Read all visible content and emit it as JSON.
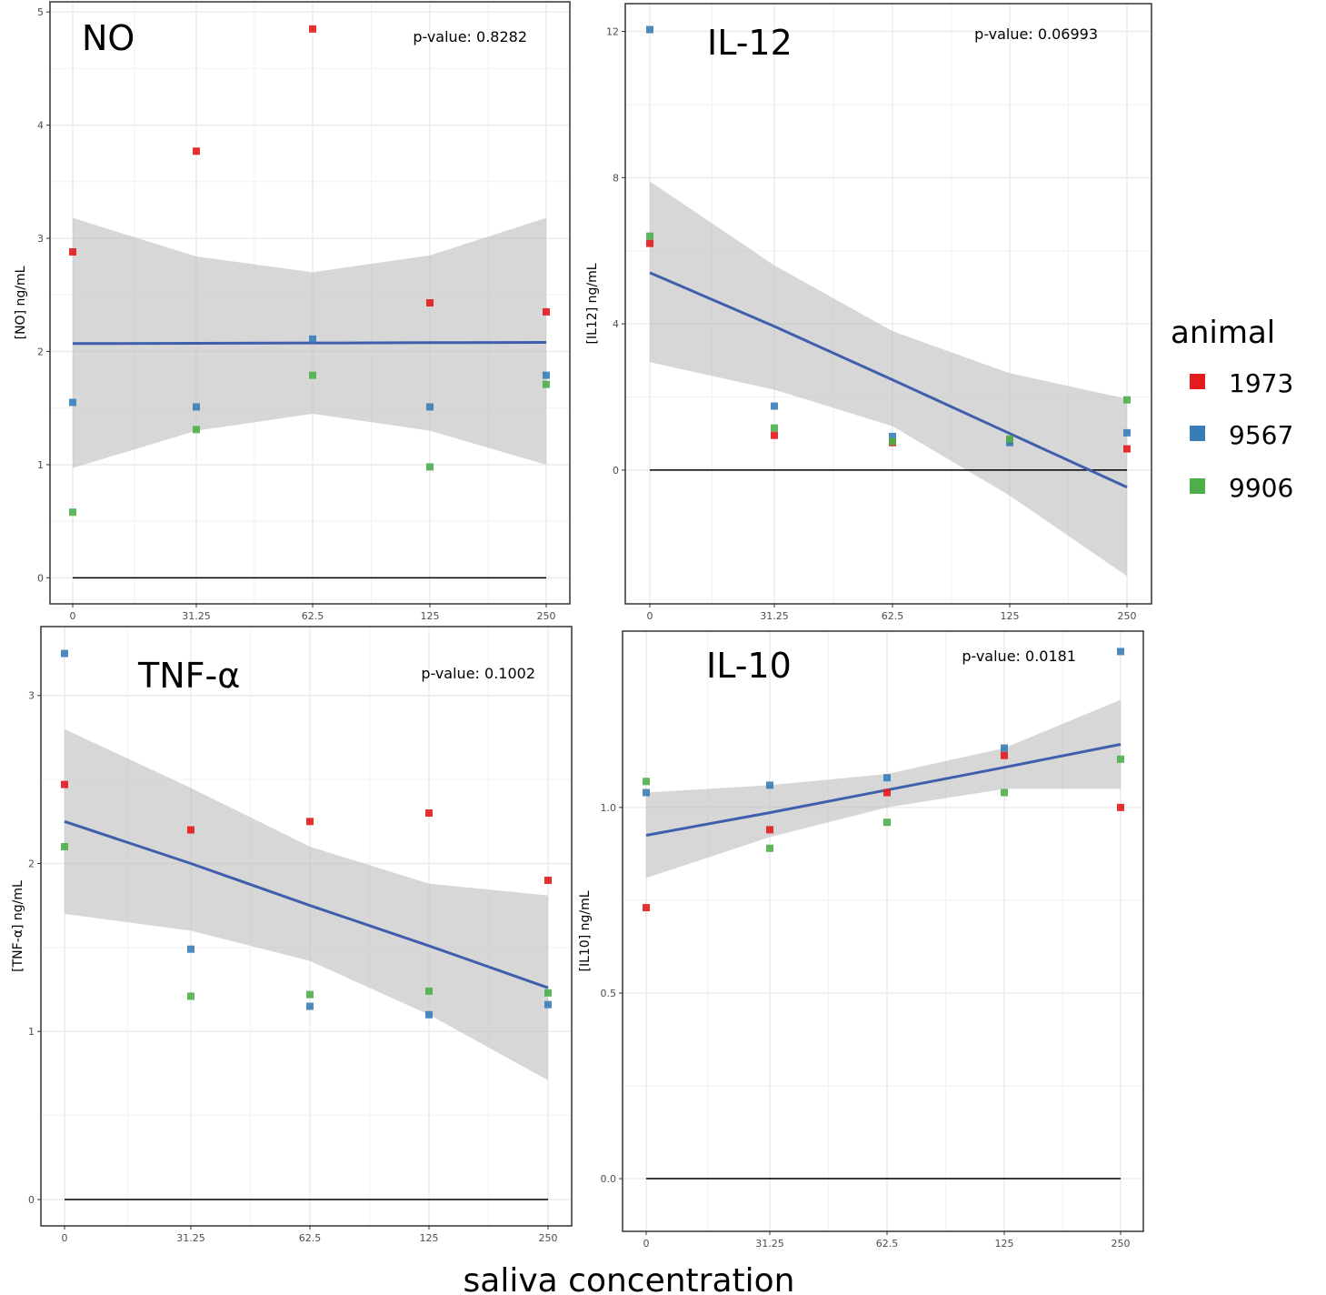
{
  "colors": {
    "1973": "#e41a1c",
    "9567": "#377eb8",
    "9906": "#4daf4a",
    "fit": "#3f5fad",
    "ci": "#bdbdbd"
  },
  "legend": {
    "title": "animal",
    "entries": [
      "1973",
      "9567",
      "9906"
    ]
  },
  "xlabel": "saliva concentration",
  "chart_data": [
    {
      "type": "scatter",
      "title": "NO",
      "pvalue": "p-value: 0.8282",
      "ylabel": "[NO] ng/mL",
      "categories": [
        "0",
        "31.25",
        "62.5",
        "125",
        "250"
      ],
      "yticks": [
        "0",
        "1",
        "2",
        "3",
        "4",
        "5"
      ],
      "ytick_values": [
        0,
        1,
        2,
        3,
        4,
        5
      ],
      "ylim": [
        -0.23,
        5.09
      ],
      "series": [
        {
          "name": "1973",
          "values": [
            2.88,
            3.77,
            4.85,
            2.43,
            2.35
          ]
        },
        {
          "name": "9567",
          "values": [
            1.55,
            1.51,
            2.11,
            1.51,
            1.79
          ]
        },
        {
          "name": "9906",
          "values": [
            0.58,
            1.31,
            1.79,
            0.98,
            1.71
          ]
        }
      ],
      "fit": [
        2.07,
        2.072,
        2.075,
        2.078,
        2.08
      ],
      "ci_upper": [
        3.18,
        2.84,
        2.7,
        2.85,
        3.18
      ],
      "ci_lower": [
        0.97,
        1.3,
        1.45,
        1.3,
        1.0
      ]
    },
    {
      "type": "scatter",
      "title": "IL-12",
      "pvalue": "p-value: 0.06993",
      "ylabel": "[IL12] ng/mL",
      "categories": [
        "0",
        "31.25",
        "62.5",
        "125",
        "250"
      ],
      "yticks": [
        "0",
        "4",
        "8",
        "12"
      ],
      "ytick_values": [
        0,
        4,
        8,
        12
      ],
      "ylim": [
        -3.66,
        12.76
      ],
      "series": [
        {
          "name": "1973",
          "values": [
            6.2,
            0.95,
            0.75,
            0.8,
            0.58
          ]
        },
        {
          "name": "9567",
          "values": [
            12.05,
            1.75,
            0.92,
            0.75,
            1.02
          ]
        },
        {
          "name": "9906",
          "values": [
            6.4,
            1.15,
            0.78,
            0.85,
            1.92
          ]
        }
      ],
      "fit": [
        5.4,
        3.93,
        2.47,
        1.0,
        -0.47
      ],
      "ci_upper": [
        7.9,
        5.6,
        3.8,
        2.65,
        1.95
      ],
      "ci_lower": [
        2.95,
        2.2,
        1.2,
        -0.7,
        -2.9
      ]
    },
    {
      "type": "scatter",
      "title": "TNF-α",
      "pvalue": "p-value: 0.1002",
      "ylabel": "[TNF-α] ng/mL",
      "categories": [
        "0",
        "31.25",
        "62.5",
        "125",
        "250"
      ],
      "yticks": [
        "0",
        "1",
        "2",
        "3"
      ],
      "ytick_values": [
        0,
        1,
        2,
        3
      ],
      "ylim": [
        -0.157,
        3.41
      ],
      "series": [
        {
          "name": "1973",
          "values": [
            2.47,
            2.2,
            2.25,
            2.3,
            1.9
          ]
        },
        {
          "name": "9567",
          "values": [
            3.25,
            1.49,
            1.15,
            1.1,
            1.16
          ]
        },
        {
          "name": "9906",
          "values": [
            2.1,
            1.21,
            1.22,
            1.24,
            1.23
          ]
        }
      ],
      "fit": [
        2.25,
        2.0,
        1.75,
        1.51,
        1.26
      ],
      "ci_upper": [
        2.8,
        2.45,
        2.1,
        1.88,
        1.81
      ],
      "ci_lower": [
        1.7,
        1.6,
        1.42,
        1.1,
        0.71
      ]
    },
    {
      "type": "scatter",
      "title": "IL-10",
      "pvalue": "p-value: 0.0181",
      "ylabel": "[IL10] ng/mL",
      "categories": [
        "0",
        "31.25",
        "62.5",
        "125",
        "250"
      ],
      "yticks": [
        "0.0",
        "0.5",
        "1.0"
      ],
      "ytick_values": [
        0,
        0.5,
        1.0
      ],
      "ylim": [
        -0.142,
        1.475
      ],
      "series": [
        {
          "name": "1973",
          "values": [
            0.73,
            0.94,
            1.04,
            1.14,
            1.0
          ]
        },
        {
          "name": "9567",
          "values": [
            1.04,
            1.06,
            1.08,
            1.16,
            1.42
          ]
        },
        {
          "name": "9906",
          "values": [
            1.07,
            0.89,
            0.96,
            1.04,
            1.13
          ]
        }
      ],
      "fit": [
        0.925,
        0.986,
        1.047,
        1.108,
        1.17
      ],
      "ci_upper": [
        1.04,
        1.06,
        1.09,
        1.16,
        1.29
      ],
      "ci_lower": [
        0.81,
        0.92,
        1.0,
        1.05,
        1.05
      ]
    }
  ]
}
